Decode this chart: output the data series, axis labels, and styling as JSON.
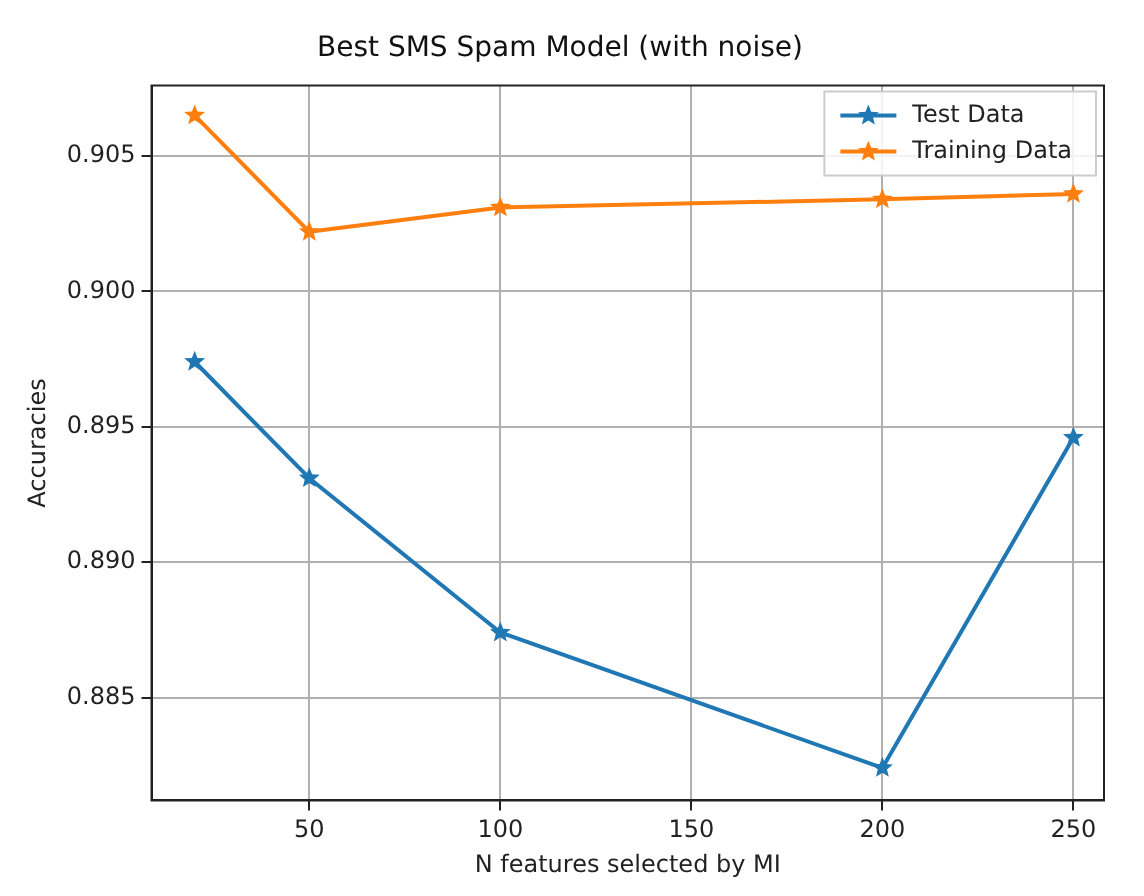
{
  "chart_data": {
    "type": "line",
    "title": "Best SMS Spam Model (with noise)",
    "xlabel": "N features selected by MI",
    "ylabel": "Accuracies",
    "x": [
      20,
      50,
      100,
      200,
      250
    ],
    "series": [
      {
        "name": "Test Data",
        "color": "#1f77b4",
        "values": [
          0.8974,
          0.8931,
          0.8874,
          0.8824,
          0.8946
        ]
      },
      {
        "name": "Training Data",
        "color": "#ff7f0e",
        "values": [
          0.9065,
          0.9022,
          0.9031,
          0.9034,
          0.9036
        ]
      }
    ],
    "xlim": [
      8.7,
      258
    ],
    "xticks": [
      50,
      100,
      150,
      200,
      250
    ],
    "ylim": [
      0.8812,
      0.9076
    ],
    "yticks": [
      0.885,
      {
        "value": 0.89,
        "label": "0.890"
      },
      0.895,
      {
        "value": 0.9,
        "label": "0.900"
      },
      0.905
    ],
    "grid": true,
    "legend": "top right",
    "marker": "star",
    "line_style": "solid"
  }
}
